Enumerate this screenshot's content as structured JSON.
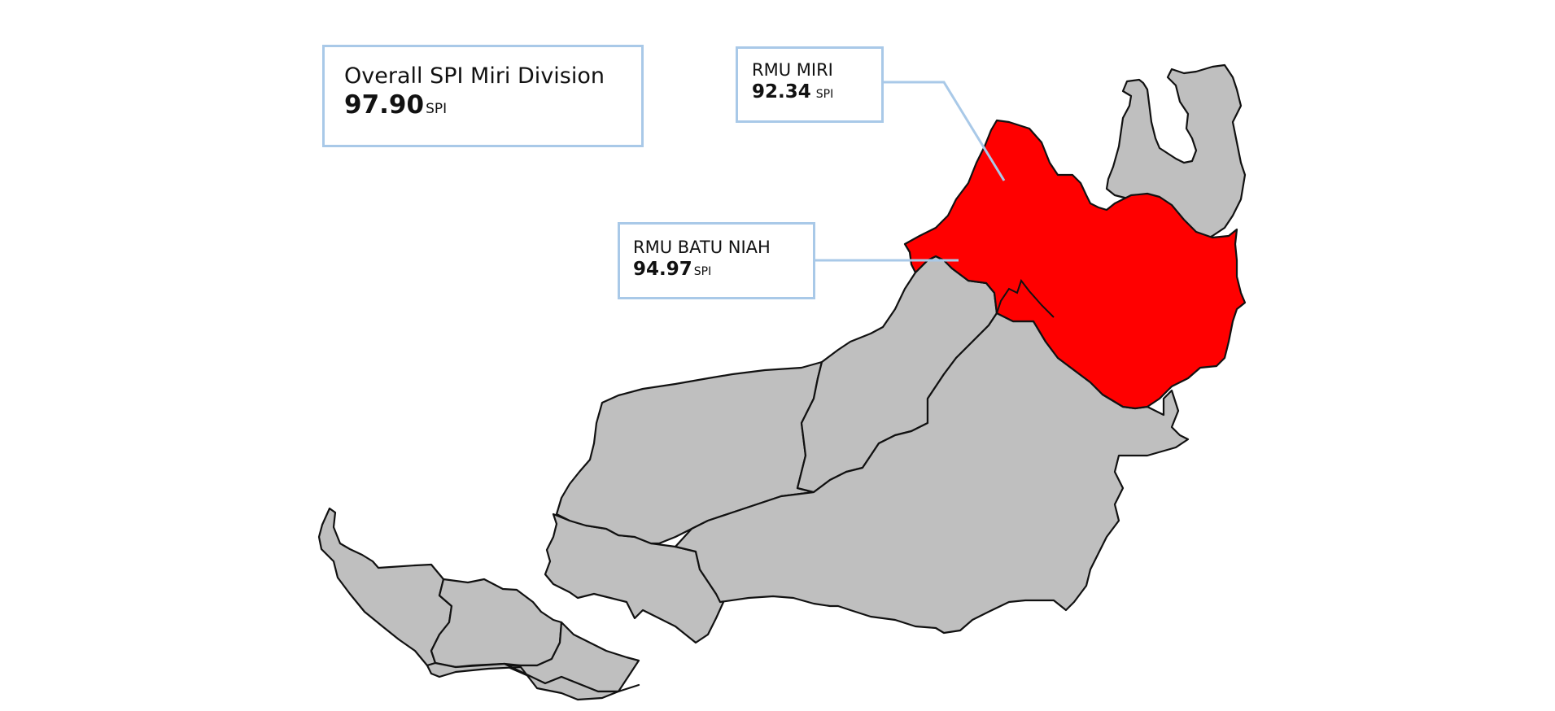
{
  "map": {
    "highlight_color": "#ff0000",
    "base_color": "#bfbfbf",
    "callout_color": "#a9c9e8",
    "highlighted_regions": [
      "RMU MIRI",
      "RMU BATU NIAH"
    ]
  },
  "overall": {
    "title": "Overall SPI Miri Division",
    "value": "97.90",
    "unit": "SPI"
  },
  "rmu_miri": {
    "title": "RMU MIRI",
    "value": "92.34",
    "unit": "SPI"
  },
  "rmu_batu_niah": {
    "title": "RMU BATU NIAH",
    "value": "94.97",
    "unit": "SPI"
  }
}
